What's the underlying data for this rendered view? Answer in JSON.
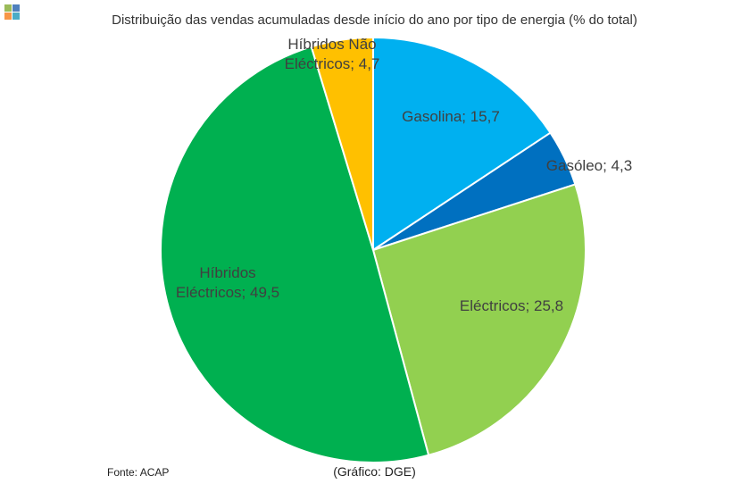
{
  "chart_data": {
    "type": "pie",
    "title": "Distribuição das vendas acumuladas desde início do ano por tipo de energia (% do total)",
    "slices": [
      {
        "label_lines": [
          "Gasolina; 15,7"
        ],
        "value": 15.7,
        "color": "#00b0f0"
      },
      {
        "label_lines": [
          "Gasóleo; 4,3"
        ],
        "value": 4.3,
        "color": "#0070c0"
      },
      {
        "label_lines": [
          "Eléctricos; 25,8"
        ],
        "value": 25.8,
        "color": "#92d050"
      },
      {
        "label_lines": [
          "Híbridos",
          "Eléctricos; 49,5"
        ],
        "value": 49.5,
        "color": "#00b050"
      },
      {
        "label_lines": [
          "Híbridos Não",
          "Eléctricos; 4,7"
        ],
        "value": 4.7,
        "color": "#ffc000"
      }
    ]
  },
  "footer": {
    "source": "Fonte: ACAP",
    "credit": "(Gráfico: DGE)"
  },
  "logo": {
    "colors": [
      "#9bbb59",
      "#4f81bd",
      "#f79646",
      "#4bacc6"
    ]
  }
}
